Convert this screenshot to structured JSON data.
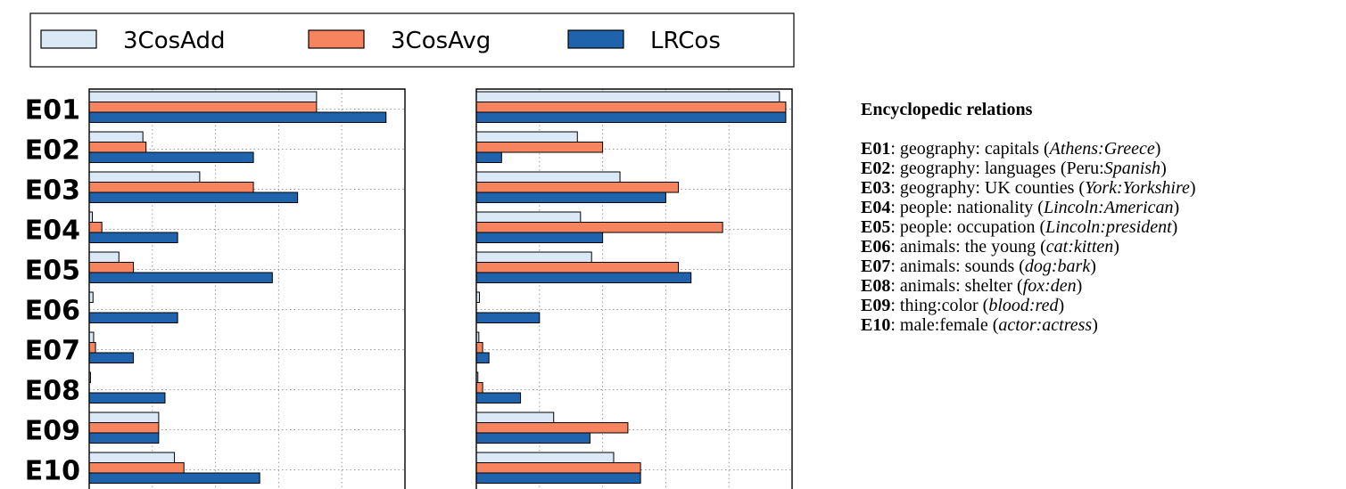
{
  "chart_data": [
    {
      "type": "bar",
      "orientation": "horizontal",
      "categories": [
        "E01",
        "E02",
        "E03",
        "E04",
        "E05",
        "E06",
        "E07",
        "E08",
        "E09",
        "E10"
      ],
      "series": [
        {
          "name": "3CosAdd",
          "values": [
            0.36,
            0.085,
            0.175,
            0.005,
            0.047,
            0.006,
            0.007,
            0.002,
            0.11,
            0.135
          ]
        },
        {
          "name": "3CosAvg",
          "values": [
            0.36,
            0.09,
            0.26,
            0.02,
            0.07,
            0.0,
            0.01,
            0.0,
            0.11,
            0.15
          ]
        },
        {
          "name": "LRCos",
          "values": [
            0.47,
            0.26,
            0.33,
            0.14,
            0.29,
            0.14,
            0.07,
            0.12,
            0.11,
            0.27
          ]
        }
      ],
      "xlim": [
        0,
        0.5
      ],
      "grid": true,
      "legend": "top"
    },
    {
      "type": "bar",
      "orientation": "horizontal",
      "categories": [
        "E01",
        "E02",
        "E03",
        "E04",
        "E05",
        "E06",
        "E07",
        "E08",
        "E09",
        "E10"
      ],
      "series": [
        {
          "name": "3CosAdd",
          "values": [
            0.96,
            0.32,
            0.455,
            0.33,
            0.365,
            0.01,
            0.008,
            0.005,
            0.245,
            0.435
          ]
        },
        {
          "name": "3CosAvg",
          "values": [
            0.98,
            0.4,
            0.64,
            0.78,
            0.64,
            0.0,
            0.02,
            0.02,
            0.48,
            0.52
          ]
        },
        {
          "name": "LRCos",
          "values": [
            0.98,
            0.08,
            0.6,
            0.4,
            0.68,
            0.2,
            0.04,
            0.14,
            0.36,
            0.52
          ]
        }
      ],
      "xlim": [
        0,
        1.0
      ],
      "grid": true,
      "legend": "top"
    }
  ],
  "colors": {
    "3CosAdd": "#dbe9f6",
    "3CosAvg": "#f6845e",
    "LRCos": "#1f63ad",
    "outline": "#000000",
    "grid": "#9a9a9a"
  },
  "legend": [
    {
      "label": "3CosAdd"
    },
    {
      "label": "3CosAvg"
    },
    {
      "label": "LRCos"
    }
  ],
  "relations": {
    "title": "Encyclopedic relations",
    "items": [
      {
        "code": "E01",
        "pre": ": geography: capitals (",
        "ex": "Athens:Greece",
        "post": ")"
      },
      {
        "code": "E02",
        "pre": ": geography: languages (Peru:",
        "ex": "Spanish",
        "post": ")"
      },
      {
        "code": "E03",
        "pre": ": geography: UK counties (",
        "ex": "York:Yorkshire",
        "post": ")"
      },
      {
        "code": "E04",
        "pre": ": people: nationality (",
        "ex": "Lincoln:American",
        "post": ")"
      },
      {
        "code": "E05",
        "pre": ": people: occupation (",
        "ex": "Lincoln:president",
        "post": ")"
      },
      {
        "code": "E06",
        "pre": ": animals: the young (",
        "ex": "cat:kitten",
        "post": ")"
      },
      {
        "code": "E07",
        "pre": ": animals: sounds (",
        "ex": "dog:bark",
        "post": ")"
      },
      {
        "code": "E08",
        "pre": ": animals: shelter (",
        "ex": "fox:den",
        "post": ")"
      },
      {
        "code": "E09",
        "pre": ": thing:color (",
        "ex": "blood:red",
        "post": ")"
      },
      {
        "code": "E10",
        "pre": ": male:female (",
        "ex": "actor:actress",
        "post": ")"
      }
    ]
  }
}
